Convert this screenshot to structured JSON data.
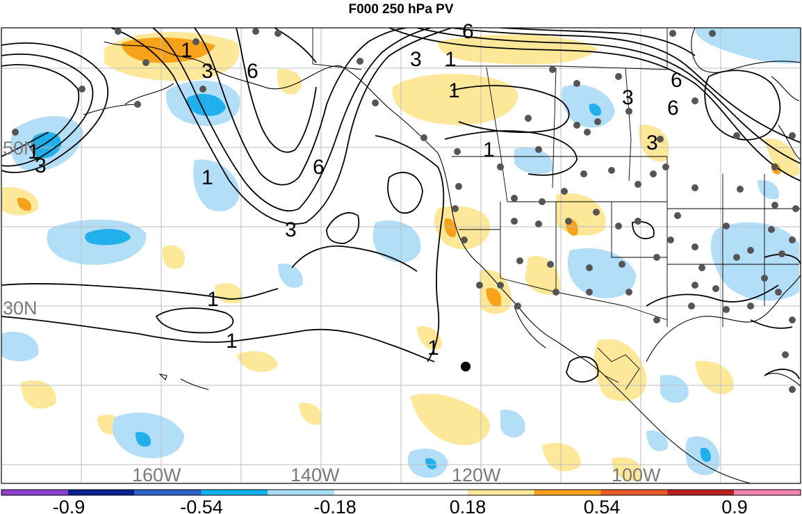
{
  "title": "F000 250 hPa PV",
  "colors": {
    "pos_light": "#fde89a",
    "pos_mid": "#f7a21a",
    "pos_strong": "#e8612c",
    "neg_light": "#b3def7",
    "neg_mid": "#21b0ec",
    "neg_strong": "#2d6fc2",
    "grid": "#bdbdbd",
    "coast": "#000000",
    "station": "#555555"
  },
  "grid_labels": {
    "lat": [
      "50N",
      "30N"
    ],
    "lon": [
      "160W",
      "140W",
      "120W",
      "100W"
    ]
  },
  "contour_labels": [
    "1",
    "3",
    "6",
    "1",
    "3",
    "6",
    "1",
    "3",
    "6",
    "1",
    "3",
    "1",
    "6",
    "1",
    "3",
    "1",
    "1",
    "1",
    "3",
    "6"
  ],
  "colorbar": {
    "labels": [
      "-0.9",
      "-0.54",
      "-0.18",
      "0.18",
      "0.54",
      "0.9"
    ],
    "bins": [
      {
        "color": "#8d3fd0"
      },
      {
        "color": "#0b2191"
      },
      {
        "color": "#2e63c9"
      },
      {
        "color": "#11b4ee"
      },
      {
        "color": "#a9dcf6"
      },
      {
        "color": "#ffffff"
      },
      {
        "color": "#ffffff"
      },
      {
        "color": "#fde89a"
      },
      {
        "color": "#f9a01b"
      },
      {
        "color": "#ec5a2a"
      },
      {
        "color": "#b8211e"
      },
      {
        "color": "#f583ad"
      }
    ]
  }
}
